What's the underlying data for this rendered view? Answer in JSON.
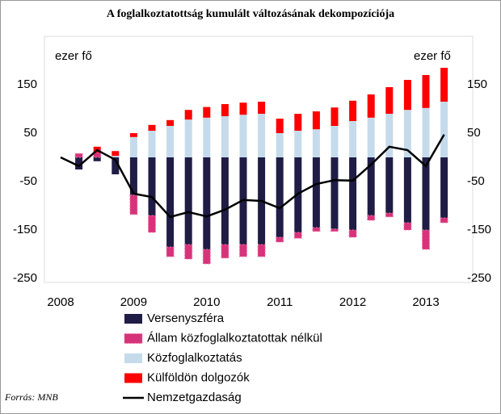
{
  "chart_data": {
    "type": "bar",
    "title": "A foglalkoztatottság kumulált változásának dekompozíciója",
    "y_label": "ezer fő",
    "source": "Forrás: MNB",
    "categories": [
      "2008",
      null,
      null,
      null,
      "2009",
      null,
      null,
      null,
      "2010",
      null,
      null,
      null,
      "2011",
      null,
      null,
      null,
      "2012",
      null,
      null,
      null,
      "2013",
      null
    ],
    "ylim": [
      -250,
      250
    ],
    "yticks": [
      -250,
      -150,
      -50,
      50,
      150
    ],
    "grid": false,
    "series": [
      {
        "name": "Versenyszféra",
        "type": "bar",
        "color": "#1f1d45",
        "values": [
          null,
          -25,
          -8,
          -35,
          -78,
          -120,
          -185,
          -180,
          -190,
          -180,
          -180,
          -180,
          -165,
          -155,
          -145,
          -148,
          -150,
          -120,
          -115,
          -135,
          -150,
          -125
        ]
      },
      {
        "name": "Állam közfoglalkoztatottak nélkül",
        "type": "bar",
        "color": "#d6337a",
        "values": [
          null,
          8,
          10,
          0,
          -40,
          -35,
          -20,
          -30,
          -30,
          -28,
          -25,
          -25,
          -10,
          -12,
          -8,
          -5,
          -15,
          -10,
          -8,
          -15,
          -40,
          -10
        ]
      },
      {
        "name": "Közfoglalkoztatás",
        "type": "bar",
        "color": "#c5dbec",
        "values": [
          null,
          0,
          0,
          3,
          42,
          55,
          65,
          78,
          82,
          85,
          88,
          90,
          50,
          55,
          58,
          65,
          75,
          82,
          90,
          98,
          102,
          115
        ]
      },
      {
        "name": "Külföldön dolgozók",
        "type": "bar",
        "color": "#ff0000",
        "values": [
          null,
          0,
          12,
          10,
          8,
          12,
          12,
          20,
          22,
          25,
          25,
          25,
          30,
          35,
          37,
          38,
          42,
          48,
          55,
          62,
          68,
          70
        ]
      },
      {
        "name": "Nemzetgazdaság",
        "type": "line",
        "color": "#000000",
        "values": [
          0,
          -18,
          15,
          -5,
          -75,
          -82,
          -123,
          -113,
          -122,
          -108,
          -88,
          -90,
          -105,
          -75,
          -55,
          -47,
          -48,
          -15,
          22,
          15,
          -18,
          47
        ]
      }
    ]
  }
}
